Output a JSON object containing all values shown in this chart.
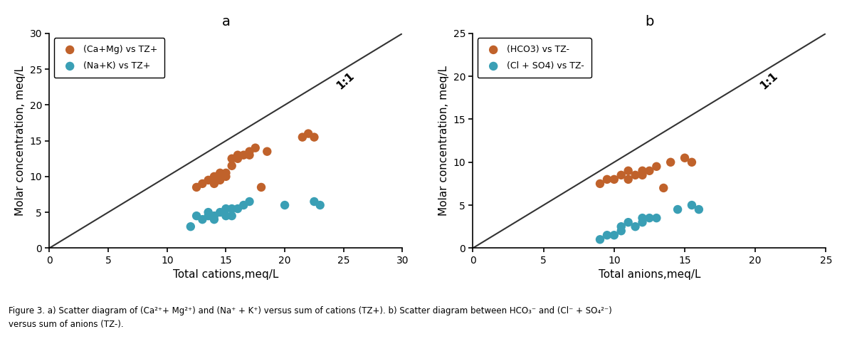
{
  "panel_a": {
    "title": "a",
    "xlabel": "Total cations,meq/L",
    "ylabel": "Molar concentration, meq/L",
    "xlim": [
      0,
      30
    ],
    "ylim": [
      0,
      30
    ],
    "xticks": [
      0,
      5,
      10,
      15,
      20,
      25,
      30
    ],
    "yticks": [
      0,
      5,
      10,
      15,
      20,
      25,
      30
    ],
    "line_1_1": [
      0,
      30
    ],
    "series1": {
      "label": "(Ca+Mg) vs TZ+",
      "color": "#C0622B",
      "x": [
        12.5,
        13.0,
        13.5,
        14.0,
        14.0,
        14.5,
        14.5,
        15.0,
        15.0,
        15.5,
        15.5,
        16.0,
        16.0,
        16.5,
        17.0,
        17.0,
        17.5,
        18.0,
        18.5,
        21.5,
        22.0,
        22.5
      ],
      "y": [
        8.5,
        9.0,
        9.5,
        9.0,
        10.0,
        9.5,
        10.5,
        10.0,
        10.5,
        11.5,
        12.5,
        13.0,
        12.5,
        13.0,
        13.5,
        13.0,
        14.0,
        8.5,
        13.5,
        15.5,
        16.0,
        15.5
      ]
    },
    "series2": {
      "label": "(Na+K) vs TZ+",
      "color": "#3A9FB5",
      "x": [
        12.0,
        12.5,
        13.0,
        13.5,
        13.5,
        14.0,
        14.0,
        14.5,
        15.0,
        15.0,
        15.5,
        15.5,
        16.0,
        16.5,
        17.0,
        20.0,
        22.5,
        23.0
      ],
      "y": [
        3.0,
        4.5,
        4.0,
        4.5,
        5.0,
        4.5,
        4.0,
        5.0,
        4.5,
        5.5,
        4.5,
        5.5,
        5.5,
        6.0,
        6.5,
        6.0,
        6.5,
        6.0
      ]
    }
  },
  "panel_b": {
    "title": "b",
    "xlabel": "Total anions,meq/L",
    "ylabel": "Molar concentration, meq/L",
    "xlim": [
      0,
      25
    ],
    "ylim": [
      0,
      25
    ],
    "xticks": [
      0,
      5,
      10,
      15,
      20,
      25
    ],
    "yticks": [
      0,
      5,
      10,
      15,
      20,
      25
    ],
    "line_1_1": [
      0,
      25
    ],
    "series1": {
      "label": "(HCO3) vs TZ-",
      "color": "#C0622B",
      "x": [
        9.0,
        9.5,
        10.0,
        10.5,
        11.0,
        11.0,
        11.5,
        12.0,
        12.0,
        12.5,
        13.0,
        13.5,
        14.0,
        15.0,
        15.5
      ],
      "y": [
        7.5,
        8.0,
        8.0,
        8.5,
        8.0,
        9.0,
        8.5,
        9.0,
        8.5,
        9.0,
        9.5,
        7.0,
        10.0,
        10.5,
        10.0
      ]
    },
    "series2": {
      "label": "(Cl + SO4) vs TZ-",
      "color": "#3A9FB5",
      "x": [
        9.0,
        9.5,
        10.0,
        10.5,
        10.5,
        11.0,
        11.5,
        12.0,
        12.0,
        12.5,
        13.0,
        14.5,
        15.5,
        16.0
      ],
      "y": [
        1.0,
        1.5,
        1.5,
        2.0,
        2.5,
        3.0,
        2.5,
        3.5,
        3.0,
        3.5,
        3.5,
        4.5,
        5.0,
        4.5
      ]
    }
  },
  "marker_size": 80,
  "line_color": "#333333",
  "line_width": 1.5,
  "label_11": "1:1",
  "caption_bold": "Figure 3.",
  "caption_a_bold": "a)",
  "caption_a": " Scatter diagram of (Ca²⁺+ Mg²⁺) and (Na⁺ + K⁺) versus sum of cations (TZ+). ",
  "caption_b_bold": "b)",
  "caption_b": " Scatter diagram between HCO₃⁻ and (Cl⁻ + SO₄²⁻) versus sum of anions (TZ-)."
}
